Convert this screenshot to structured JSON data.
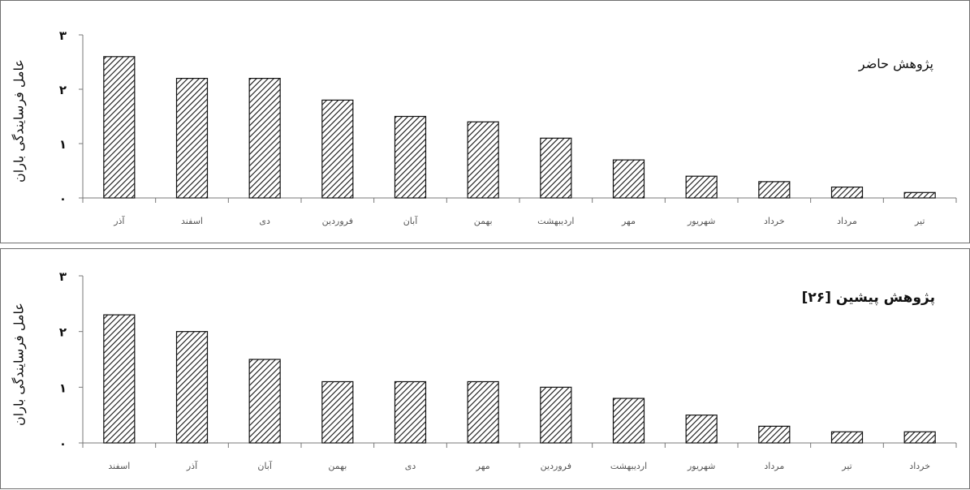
{
  "chart_data": [
    {
      "type": "bar",
      "title": "پژوهش حاضر",
      "ylabel": "عامل فرسایندگی باران",
      "ylim": [
        0,
        3
      ],
      "yticks": [
        "۰",
        "۱",
        "۲",
        "۳"
      ],
      "categories": [
        "آذر",
        "اسفند",
        "دی",
        "فروردین",
        "آبان",
        "بهمن",
        "اردیبهشت",
        "مهر",
        "شهریور",
        "خرداد",
        "مرداد",
        "تیر"
      ],
      "values": [
        2.6,
        2.2,
        2.2,
        1.8,
        1.5,
        1.4,
        1.1,
        0.7,
        0.4,
        0.3,
        0.2,
        0.1
      ],
      "pattern": "diagonal-hatch",
      "bar_color": "#111111"
    },
    {
      "type": "bar",
      "title": "پژوهش پیشین [۲۶]",
      "ylabel": "عامل فرسایندگی باران",
      "ylim": [
        0,
        3
      ],
      "yticks": [
        "۰",
        "۱",
        "۲",
        "۳"
      ],
      "categories": [
        "اسفند",
        "آذر",
        "آبان",
        "بهمن",
        "دی",
        "مهر",
        "فروردین",
        "اردیبهشت",
        "شهریور",
        "مرداد",
        "تیر",
        "خرداد"
      ],
      "values": [
        2.3,
        2.0,
        1.5,
        1.1,
        1.1,
        1.1,
        1.0,
        0.8,
        0.5,
        0.3,
        0.2,
        0.2
      ],
      "pattern": "diagonal-hatch",
      "bar_color": "#111111"
    }
  ]
}
